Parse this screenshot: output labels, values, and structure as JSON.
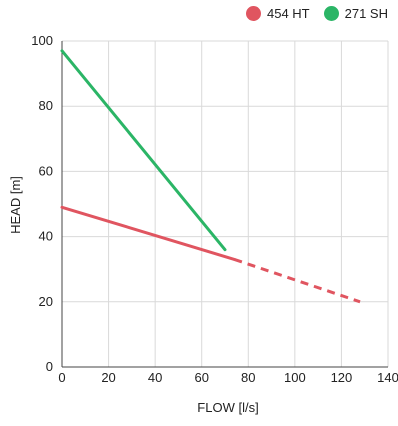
{
  "chart_data": {
    "type": "line",
    "xlabel": "FLOW [l/s]",
    "ylabel": "HEAD [m]",
    "xlim": [
      0,
      140
    ],
    "ylim": [
      0,
      100
    ],
    "x_ticks": [
      0,
      20,
      40,
      60,
      80,
      100,
      120,
      140
    ],
    "y_ticks": [
      0,
      20,
      40,
      60,
      80,
      100
    ],
    "x_tick_labels": [
      "0",
      "20",
      "40",
      "60",
      "80",
      "100",
      "120",
      "140"
    ],
    "y_tick_labels": [
      "0",
      "20",
      "40",
      "60",
      "80",
      "100"
    ],
    "grid": true,
    "legend_position": "top-right",
    "series": [
      {
        "name": "454 HT",
        "color": "#e05560",
        "points": [
          [
            0,
            49
          ],
          [
            74,
            33
          ]
        ],
        "dashed_points": [
          [
            74,
            33
          ],
          [
            128,
            20
          ]
        ]
      },
      {
        "name": "271 SH",
        "color": "#2bb566",
        "points": [
          [
            0,
            97
          ],
          [
            70,
            36
          ]
        ]
      }
    ]
  }
}
